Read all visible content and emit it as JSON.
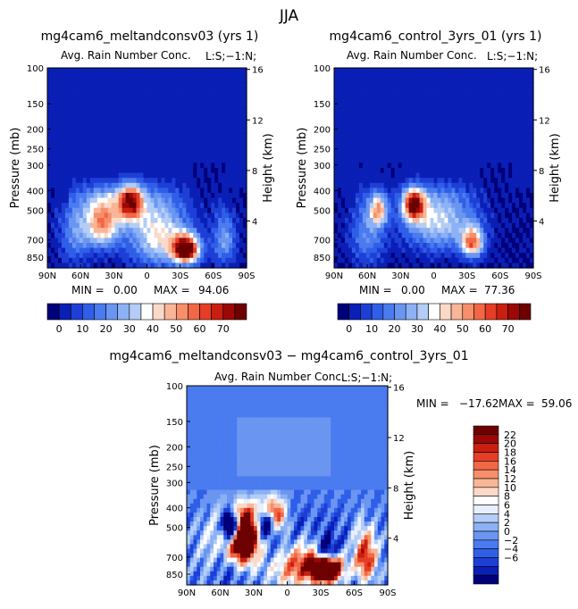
{
  "figure": {
    "title": "JJA"
  },
  "colorbar_top": {
    "colors": [
      "#00007a",
      "#0a1fb5",
      "#1e3fd6",
      "#2f5fe8",
      "#4a7bef",
      "#6a96f2",
      "#8cb1f4",
      "#b3cdf6",
      "#ffffff",
      "#fbd9c8",
      "#f9b597",
      "#f68f6a",
      "#f26746",
      "#e53d26",
      "#c81f10",
      "#9c0806",
      "#6d0000"
    ],
    "labels": [
      "0",
      "10",
      "20",
      "30",
      "40",
      "50",
      "60",
      "70"
    ]
  },
  "colorbar_diff": {
    "colors": [
      "#00007a",
      "#0a1fb5",
      "#1e3fd6",
      "#2f5fe8",
      "#4a7bef",
      "#6a96f2",
      "#8cb1f4",
      "#b3cdf6",
      "#e8efff",
      "#ffffff",
      "#fbd9c8",
      "#f9b597",
      "#f68f6a",
      "#f26746",
      "#e53d26",
      "#c81f10",
      "#9c0806",
      "#6d0000"
    ],
    "labels": [
      "22",
      "20",
      "18",
      "16",
      "14",
      "12",
      "10",
      "8",
      "6",
      "4",
      "2",
      "0",
      "−2",
      "−4",
      "−6"
    ]
  },
  "chart_data": [
    {
      "type": "heatmap",
      "title": "mg4cam6_meltandconsv03 (yrs 1)",
      "subtitle": "Avg. Rain Number Conc.",
      "annotation": "L:S;−1:N;",
      "ylabel": "Pressure (mb)",
      "y2label": "Height (km)",
      "x_ticks": [
        "90N",
        "60N",
        "30N",
        "0",
        "30S",
        "60S",
        "90S"
      ],
      "y_ticks": [
        "100",
        "150",
        "200",
        "250",
        "300",
        "400",
        "500",
        "700",
        "850"
      ],
      "y2_ticks": [
        "16",
        "12",
        "8",
        "4"
      ],
      "stats": {
        "min_label": "MIN =",
        "min_value": "0.00",
        "max_label": "MAX =",
        "max_value": "94.06"
      },
      "blobs": [
        {
          "lat": 15,
          "p": 450,
          "v": 70,
          "sl": 12,
          "sp": 110
        },
        {
          "lat": -35,
          "p": 780,
          "v": 88,
          "sl": 12,
          "sp": 120
        },
        {
          "lat": 40,
          "p": 560,
          "v": 55,
          "sl": 16,
          "sp": 180
        },
        {
          "lat": -10,
          "p": 650,
          "v": 40,
          "sl": 25,
          "sp": 260
        },
        {
          "lat": 65,
          "p": 620,
          "v": 20,
          "sl": 14,
          "sp": 260
        },
        {
          "lat": -70,
          "p": 700,
          "v": 25,
          "sl": 10,
          "sp": 200
        }
      ]
    },
    {
      "type": "heatmap",
      "title": "mg4cam6_control_3yrs_01 (yrs 1)",
      "subtitle": "Avg. Rain Number Conc.",
      "annotation": "L:S;−1:N;",
      "ylabel": "Pressure (mb)",
      "y2label": "Height (km)",
      "x_ticks": [
        "90N",
        "60N",
        "30N",
        "0",
        "30S",
        "60S",
        "90S"
      ],
      "y_ticks": [
        "100",
        "150",
        "200",
        "250",
        "300",
        "400",
        "500",
        "700",
        "850"
      ],
      "y2_ticks": [
        "16",
        "12",
        "8",
        "4"
      ],
      "stats": {
        "min_label": "MIN =",
        "min_value": "0.00",
        "max_label": "MAX =",
        "max_value": "77.36"
      },
      "blobs": [
        {
          "lat": 18,
          "p": 470,
          "v": 70,
          "sl": 10,
          "sp": 90
        },
        {
          "lat": 50,
          "p": 500,
          "v": 45,
          "sl": 8,
          "sp": 90
        },
        {
          "lat": -35,
          "p": 720,
          "v": 55,
          "sl": 10,
          "sp": 120
        },
        {
          "lat": -5,
          "p": 560,
          "v": 35,
          "sl": 30,
          "sp": 200
        },
        {
          "lat": 60,
          "p": 650,
          "v": 20,
          "sl": 15,
          "sp": 250
        }
      ]
    },
    {
      "type": "heatmap",
      "title": "mg4cam6_meltandconsv03 − mg4cam6_control_3yrs_01",
      "subtitle": "Avg. Rain Number Conc.",
      "annotation": "L:S;−1:N;",
      "ylabel": "Pressure (mb)",
      "y2label": "Height (km)",
      "x_ticks": [
        "90N",
        "60N",
        "30N",
        "0",
        "30S",
        "60S",
        "90S"
      ],
      "y_ticks": [
        "100",
        "150",
        "200",
        "250",
        "300",
        "400",
        "500",
        "700",
        "850"
      ],
      "y2_ticks": [
        "16",
        "12",
        "8",
        "4"
      ],
      "stats": {
        "min_label": "MIN =",
        "min_value": "−17.62",
        "max_label": "MAX =",
        "max_value": "59.06"
      }
    }
  ]
}
